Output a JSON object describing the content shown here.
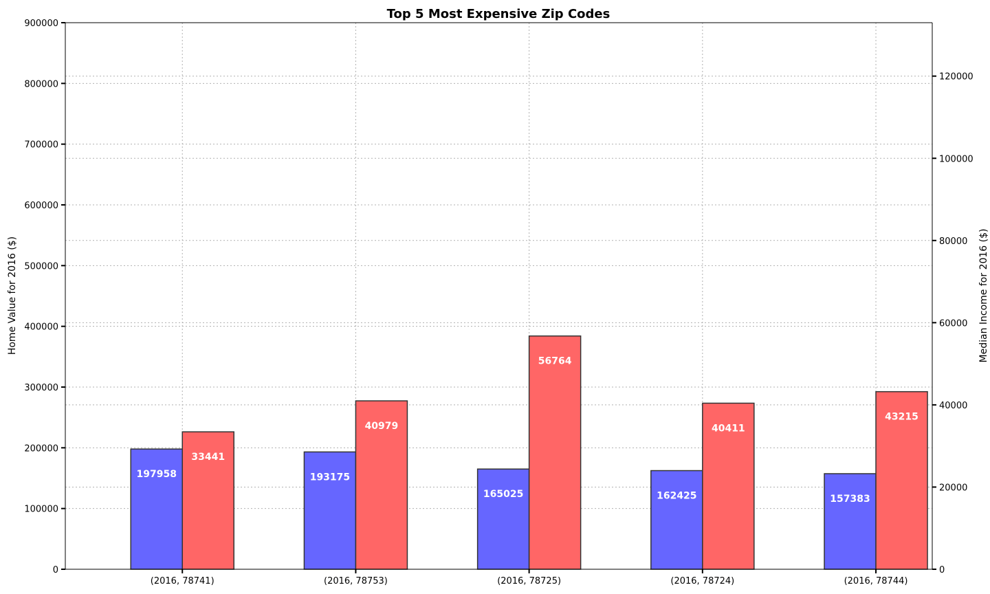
{
  "chart_data": {
    "type": "bar",
    "title": "Top 5 Most Expensive Zip Codes",
    "categories": [
      "(2016, 78741)",
      "(2016, 78753)",
      "(2016, 78725)",
      "(2016, 78724)",
      "(2016, 78744)"
    ],
    "series": [
      {
        "name": "",
        "axis": "left",
        "color": "#6666ff",
        "values": [
          197958,
          193175,
          165025,
          162425,
          157383
        ]
      },
      {
        "name": "",
        "axis": "right",
        "color": "#ff6666",
        "values": [
          33441,
          40979,
          56764,
          40411,
          43215
        ]
      }
    ],
    "ylabel": "Home Value for 2016 ($)",
    "y2label": "Median Income for 2016 ($)",
    "ylim": [
      0,
      900000
    ],
    "y2lim": [
      0,
      133000
    ],
    "yticks": [
      0,
      100000,
      200000,
      300000,
      400000,
      500000,
      600000,
      700000,
      800000,
      900000
    ],
    "y2ticks": [
      0,
      20000,
      40000,
      60000,
      80000,
      100000,
      120000
    ],
    "grid": true,
    "legend": "none"
  }
}
